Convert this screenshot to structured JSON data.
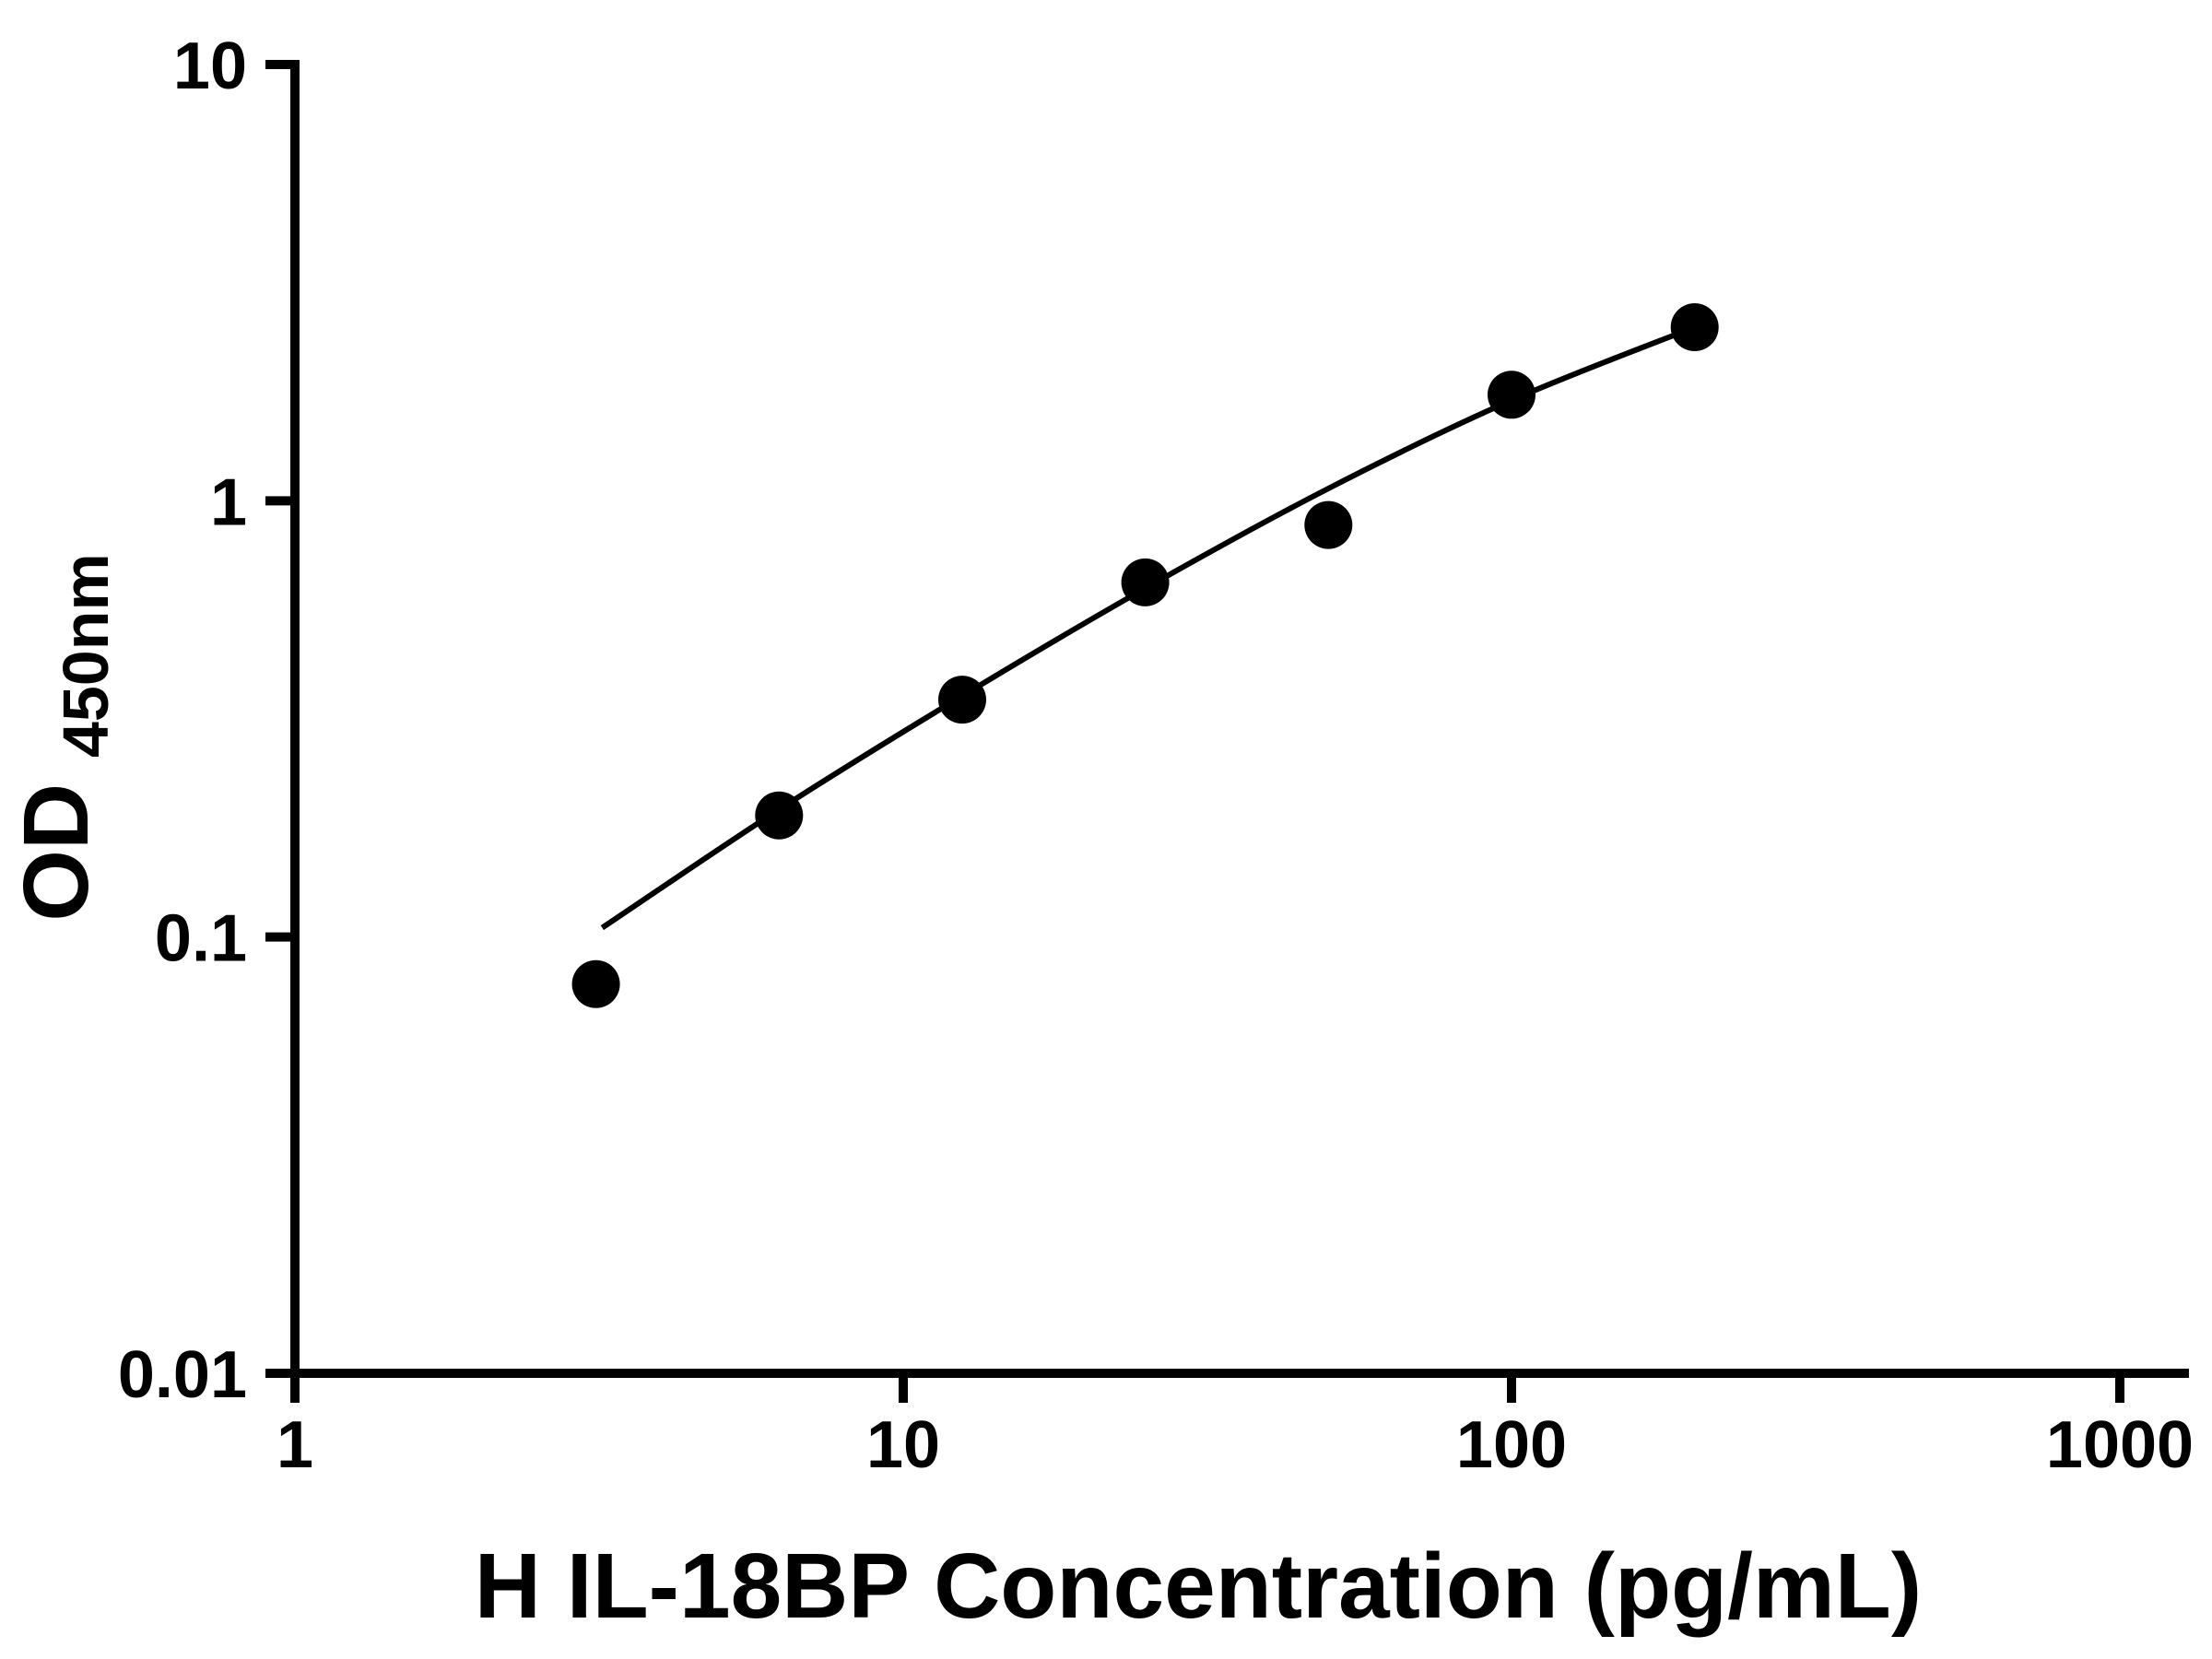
{
  "chart_data": {
    "type": "scatter",
    "title": "",
    "xlabel": "H IL-18BP Concentration (pg/mL)",
    "ylabel": "OD450nm",
    "ylabel_main": "OD",
    "ylabel_sub": "450nm",
    "x_scale": "log",
    "y_scale": "log",
    "xlim": [
      1,
      1000
    ],
    "ylim": [
      0.01,
      10
    ],
    "x_tick_labels": [
      "1",
      "10",
      "100",
      "1000"
    ],
    "y_tick_labels": [
      "0.01",
      "0.1",
      "1",
      "10"
    ],
    "grid": false,
    "legend": false,
    "colors": {
      "marker": "#000000",
      "curve": "#000000",
      "axis": "#000000"
    },
    "series": [
      {
        "name": "standard-curve-points",
        "x": [
          3.125,
          6.25,
          12.5,
          25,
          50,
          100,
          200
        ],
        "y": [
          0.078,
          0.19,
          0.35,
          0.65,
          0.88,
          1.75,
          2.5
        ]
      }
    ],
    "fit_curve": {
      "x": [
        3.2,
        6.25,
        12.5,
        25,
        50,
        100,
        200
      ],
      "y": [
        0.105,
        0.196,
        0.357,
        0.63,
        1.067,
        1.7,
        2.5
      ]
    }
  }
}
